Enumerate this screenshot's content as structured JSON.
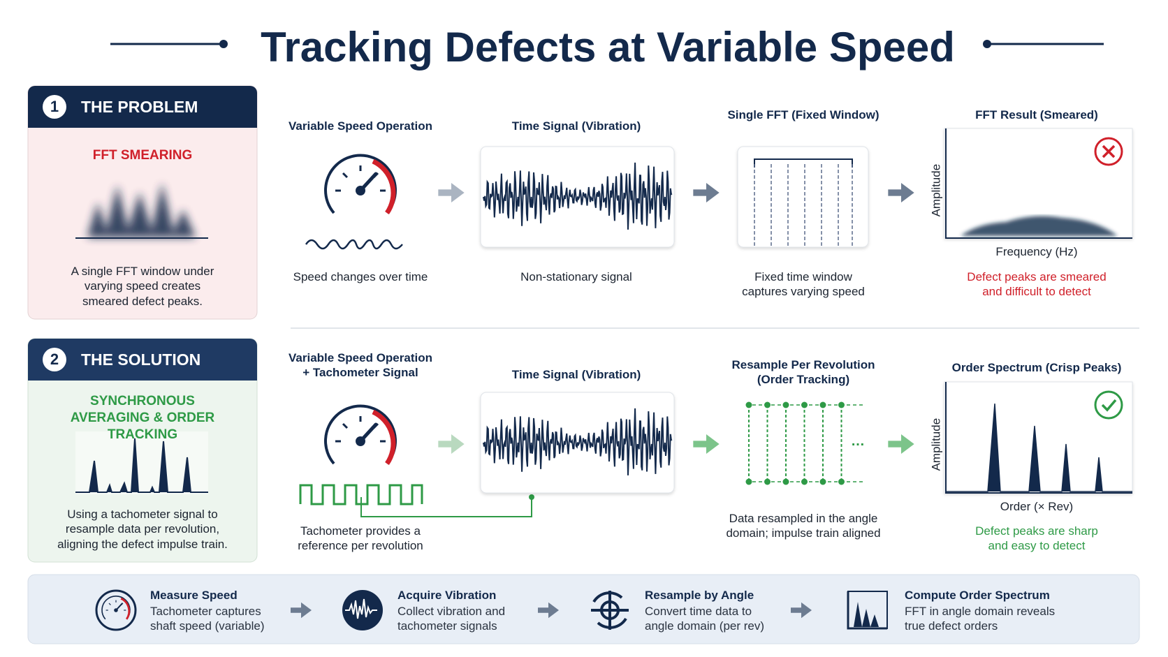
{
  "title": "Tracking Defects at Variable Speed",
  "problem": {
    "number": "1",
    "heading": "THE PROBLEM",
    "subtitle": "FFT SMEARING",
    "description": "A single FFT window under varying speed creates smeared defect peaks.",
    "steps": [
      {
        "title": "Variable Speed Operation",
        "caption": "Speed changes over time"
      },
      {
        "title": "Time Signal (Vibration)",
        "caption": "Non-stationary signal"
      },
      {
        "title": "Single FFT (Fixed Window)",
        "caption": "Fixed time window captures varying speed"
      },
      {
        "title": "FFT Result (Smeared)",
        "caption": "Defect peaks are smeared and difficult to detect",
        "y_label": "Amplitude",
        "x_label": "Frequency (Hz)"
      }
    ]
  },
  "solution": {
    "number": "2",
    "heading": "THE SOLUTION",
    "subtitle": "SYNCHRONOUS AVERAGING & ORDER TRACKING",
    "description": "Using a tachometer signal to resample data per revolution, aligning the defect impulse train.",
    "steps": [
      {
        "title": "Variable Speed Operation + Tachometer Signal",
        "caption": "Tachometer provides a reference per revolution"
      },
      {
        "title": "Time Signal (Vibration)"
      },
      {
        "title": "Resample Per Revolution (Order Tracking)",
        "caption": "Data resampled in the angle domain; impulse train aligned"
      },
      {
        "title": "Order Spectrum (Crisp Peaks)",
        "caption": "Defect peaks are sharp and easy to detect",
        "y_label": "Amplitude",
        "x_label": "Order (× Rev)"
      }
    ]
  },
  "workflow": [
    {
      "title": "Measure Speed",
      "description": "Tachometer captures shaft speed (variable)"
    },
    {
      "title": "Acquire Vibration",
      "description": "Collect vibration and tachometer signals"
    },
    {
      "title": "Resample by Angle",
      "description": "Convert time data to angle domain (per rev)"
    },
    {
      "title": "Compute Order Spectrum",
      "description": "FFT in angle domain reveals true defect orders"
    }
  ]
}
